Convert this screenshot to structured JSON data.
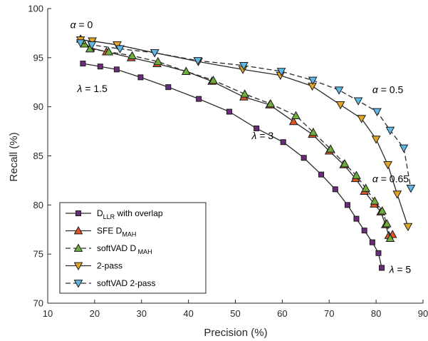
{
  "chart_data": {
    "type": "line",
    "xlabel": "Precision (%)",
    "ylabel": "Recall (%)",
    "xlim": [
      10,
      90
    ],
    "ylim": [
      70,
      100
    ],
    "xticks": [
      10,
      20,
      30,
      40,
      50,
      60,
      70,
      80,
      90
    ],
    "yticks": [
      70,
      75,
      80,
      85,
      90,
      95,
      100
    ],
    "grid": false,
    "legend_position": "bottom-left",
    "series": [
      {
        "name": "D_LLR with overlap",
        "main": "D",
        "sub": "LLR",
        "rest": " with overlap",
        "color": "#2b2b2b",
        "dash": "solid",
        "marker": "square",
        "marker_color": "#6a2c7d",
        "x": [
          17.5,
          21.2,
          24.7,
          29.8,
          35.7,
          42.2,
          48.7,
          54.5,
          60.2,
          64.6,
          68.3,
          71.3,
          73.9,
          75.8,
          77.5,
          79.2,
          80.5,
          81.2
        ],
        "y": [
          94.4,
          94.1,
          93.8,
          93.0,
          92.0,
          90.8,
          89.5,
          87.8,
          86.4,
          84.8,
          83.1,
          81.6,
          80.0,
          78.6,
          77.4,
          76.2,
          75.1,
          73.6
        ]
      },
      {
        "name": "SFE D_MAH",
        "main": "SFE D",
        "sub": "MAH",
        "rest": "",
        "color": "#2b2b2b",
        "dash": "solid",
        "marker": "triangle-up",
        "marker_color": "#e0542b",
        "x": [
          17.0,
          19.1,
          22.5,
          27.8,
          33.3,
          39.5,
          45.0,
          51.8,
          57.3,
          62.4,
          66.4,
          70.0,
          73.1,
          75.6,
          77.5,
          79.6,
          81.0,
          82.0,
          82.7,
          83.5
        ],
        "y": [
          96.9,
          96.0,
          95.6,
          95.0,
          94.4,
          93.6,
          92.6,
          91.0,
          90.2,
          88.5,
          87.2,
          85.5,
          84.1,
          82.7,
          81.4,
          80.1,
          79.3,
          78.0,
          76.9,
          77.0
        ]
      },
      {
        "name": "softVAD D_MAH",
        "main": "softVAD D",
        "sub": " MAH",
        "rest": "",
        "color": "#2b2b2b",
        "dash": "dashed",
        "marker": "triangle-up",
        "marker_color": "#6fae3c",
        "x": [
          17.8,
          19.0,
          23.0,
          28.0,
          33.5,
          39.5,
          45.3,
          52.0,
          57.5,
          62.9,
          66.6,
          70.3,
          73.3,
          75.8,
          77.8,
          79.7,
          81.3,
          82.3,
          83.0
        ],
        "y": [
          96.4,
          95.9,
          95.6,
          95.2,
          94.6,
          93.6,
          92.7,
          91.3,
          90.3,
          89.1,
          87.4,
          85.7,
          84.2,
          83.0,
          81.7,
          80.4,
          79.4,
          78.1,
          76.6
        ]
      },
      {
        "name": "2-pass",
        "main": "2-pass",
        "sub": "",
        "rest": "",
        "color": "#2b2b2b",
        "dash": "solid",
        "marker": "triangle-down",
        "marker_color": "#e3a623",
        "x": [
          17.0,
          19.5,
          24.8,
          32.8,
          42.1,
          51.6,
          59.6,
          66.4,
          72.4,
          76.9,
          80.0,
          82.5,
          84.5,
          86.8
        ],
        "y": [
          96.8,
          96.7,
          96.3,
          95.5,
          94.6,
          93.8,
          93.2,
          92.1,
          90.2,
          88.8,
          86.7,
          84.1,
          81.1,
          77.8
        ]
      },
      {
        "name": "softVAD 2-pass",
        "main": "softVAD 2-pass",
        "sub": "",
        "rest": "",
        "color": "#2b2b2b",
        "dash": "dashed",
        "marker": "triangle-down",
        "marker_color": "#5fb8e5",
        "x": [
          17.0,
          19.4,
          25.4,
          32.8,
          42.0,
          51.8,
          59.8,
          66.5,
          72.1,
          76.2,
          80.2,
          83.0,
          85.9,
          87.4
        ],
        "y": [
          96.5,
          96.3,
          95.9,
          95.5,
          94.7,
          94.2,
          93.6,
          92.7,
          91.7,
          90.6,
          89.5,
          87.6,
          85.8,
          81.7
        ]
      }
    ],
    "annotations": [
      {
        "id": "alpha-0",
        "prefix": "α",
        "suffix": " = 0",
        "x": 14.8,
        "y": 98.0
      },
      {
        "id": "lambda-1-5",
        "prefix": "λ",
        "suffix": " = 1.5",
        "x": 16.3,
        "y": 91.5
      },
      {
        "id": "alpha-0-5",
        "prefix": "α",
        "suffix": " = 0.5",
        "x": 79.2,
        "y": 91.4
      },
      {
        "id": "lambda-3",
        "prefix": "λ",
        "suffix": " = 3",
        "x": 53.5,
        "y": 86.7
      },
      {
        "id": "alpha-0-65",
        "prefix": "α",
        "suffix": " = 0.65",
        "x": 79.2,
        "y": 82.3
      },
      {
        "id": "lambda-5",
        "prefix": "λ",
        "suffix": " = 5",
        "x": 82.8,
        "y": 73.1
      }
    ]
  }
}
